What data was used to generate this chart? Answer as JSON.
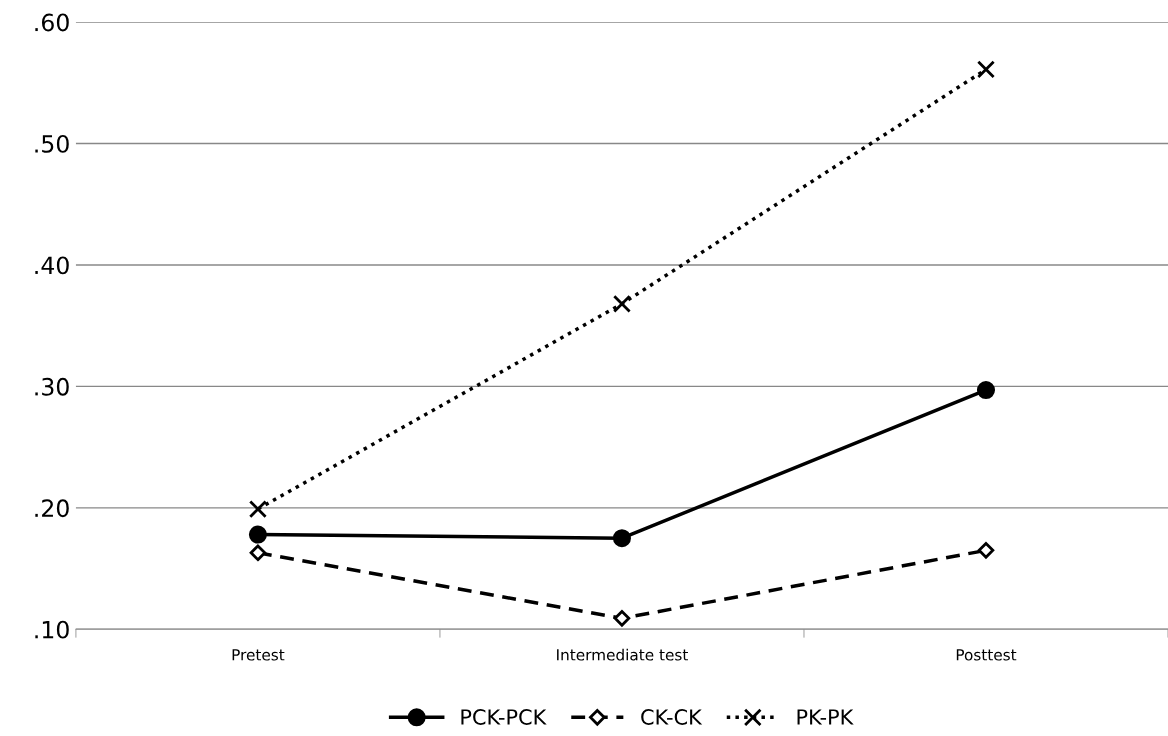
{
  "chart_data": {
    "type": "line",
    "categories": [
      "Pretest",
      "Intermediate test",
      "Posttest"
    ],
    "series": [
      {
        "name": "PCK-PCK",
        "color": "#000000",
        "marker": "circle",
        "line_style": "solid",
        "values": [
          0.178,
          0.175,
          0.297
        ]
      },
      {
        "name": "CK-CK",
        "color": "#000000",
        "marker": "diamond",
        "line_style": "dashed",
        "values": [
          0.163,
          0.109,
          0.165
        ]
      },
      {
        "name": "PK-PK",
        "color": "#000000",
        "marker": "cross",
        "line_style": "dotted",
        "values": [
          0.199,
          0.368,
          0.561
        ]
      }
    ],
    "ylim": [
      0.1,
      0.6
    ],
    "yticks": [
      {
        "value": 0.1,
        "label": ".10"
      },
      {
        "value": 0.2,
        "label": ".20"
      },
      {
        "value": 0.3,
        "label": ".30"
      },
      {
        "value": 0.4,
        "label": ".40"
      },
      {
        "value": 0.5,
        "label": ".50"
      },
      {
        "value": 0.6,
        "label": ".60"
      }
    ],
    "grid": "y",
    "legend": "bottom"
  }
}
